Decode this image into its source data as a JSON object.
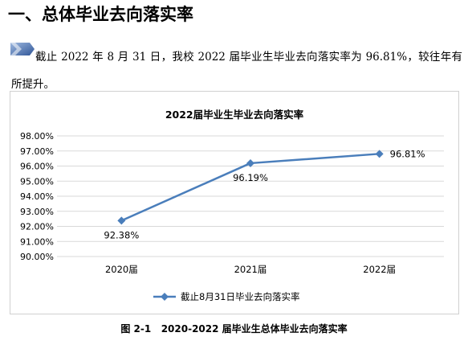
{
  "section": {
    "heading": "一、总体毕业去向落实率",
    "paragraph": "截止 2022 年 8 月 31 日，我校 2022 届毕业生毕业去向落实率为 96.81%，较往年有所提升。"
  },
  "chart_data": {
    "type": "line",
    "title": "2022届毕业生毕业去向落实率",
    "categories": [
      "2020届",
      "2021届",
      "2022届"
    ],
    "series": [
      {
        "name": "截止8月31日毕业去向落实率",
        "values": [
          92.38,
          96.19,
          96.81
        ],
        "labels": [
          "92.38%",
          "96.19%",
          "96.81%"
        ]
      }
    ],
    "ylim": [
      90,
      98
    ],
    "yticks": [
      "90.00%",
      "91.00%",
      "92.00%",
      "93.00%",
      "94.00%",
      "95.00%",
      "96.00%",
      "97.00%",
      "98.00%"
    ],
    "grid": true,
    "legend": "bottom",
    "line_color": "#4a7ebb"
  },
  "figure": {
    "caption": "图 2-1   2020-2022 届毕业生总体毕业去向落实率"
  }
}
